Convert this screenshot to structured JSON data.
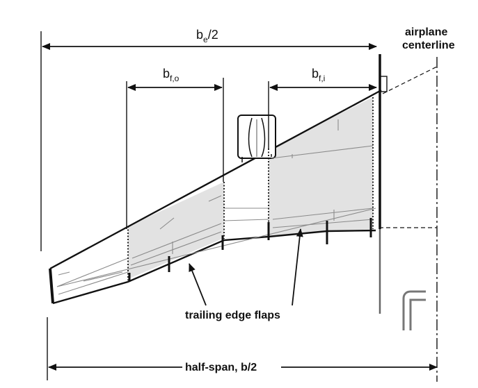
{
  "labels": {
    "be_main": "b",
    "be_sub": "e",
    "be_tail": "/2",
    "bfo_main": "b",
    "bfo_sub": "f,o",
    "bfi_main": "b",
    "bfi_sub": "f,i",
    "centerline_1": "airplane",
    "centerline_2": "centerline",
    "flaps": "trailing edge flaps",
    "half_span": "half-span, b/2"
  },
  "colors": {
    "ink": "#111111",
    "flap_fill": "#e2e2e2",
    "detail": "#8a8a8a"
  }
}
